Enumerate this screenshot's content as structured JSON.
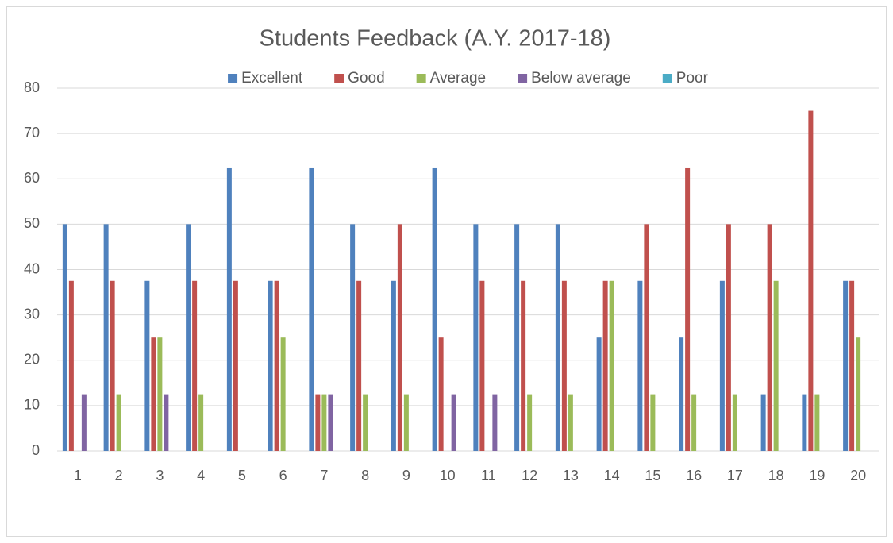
{
  "chart_data": {
    "type": "bar",
    "title": "Students Feedback (A.Y. 2017-18)",
    "categories": [
      "1",
      "2",
      "3",
      "4",
      "5",
      "6",
      "7",
      "8",
      "9",
      "10",
      "11",
      "12",
      "13",
      "14",
      "15",
      "16",
      "17",
      "18",
      "19",
      "20"
    ],
    "series": [
      {
        "name": "Excellent",
        "color": "#4f81bd",
        "values": [
          50,
          50,
          37.5,
          50,
          62.5,
          37.5,
          62.5,
          50,
          37.5,
          62.5,
          50,
          50,
          50,
          25,
          37.5,
          25,
          37.5,
          12.5,
          12.5,
          37.5
        ]
      },
      {
        "name": "Good",
        "color": "#c0504d",
        "values": [
          37.5,
          37.5,
          25,
          37.5,
          37.5,
          37.5,
          12.5,
          37.5,
          50,
          25,
          37.5,
          37.5,
          37.5,
          37.5,
          50,
          62.5,
          50,
          50,
          75,
          37.5
        ]
      },
      {
        "name": "Average",
        "color": "#9bbb59",
        "values": [
          0,
          12.5,
          25,
          12.5,
          0,
          25,
          12.5,
          12.5,
          12.5,
          0,
          0,
          12.5,
          12.5,
          37.5,
          12.5,
          12.5,
          12.5,
          37.5,
          12.5,
          25
        ]
      },
      {
        "name": "Below average",
        "color": "#8064a2",
        "values": [
          12.5,
          0,
          12.5,
          0,
          0,
          0,
          12.5,
          0,
          0,
          12.5,
          12.5,
          0,
          0,
          0,
          0,
          0,
          0,
          0,
          0,
          0
        ]
      },
      {
        "name": "Poor",
        "color": "#4bacc6",
        "values": [
          0,
          0,
          0,
          0,
          0,
          0,
          0,
          0,
          0,
          0,
          0,
          0,
          0,
          0,
          0,
          0,
          0,
          0,
          0,
          0
        ]
      }
    ],
    "ylim": [
      0,
      80
    ],
    "yticks": [
      0,
      10,
      20,
      30,
      40,
      50,
      60,
      70,
      80
    ],
    "grid": true,
    "legend": "top"
  }
}
